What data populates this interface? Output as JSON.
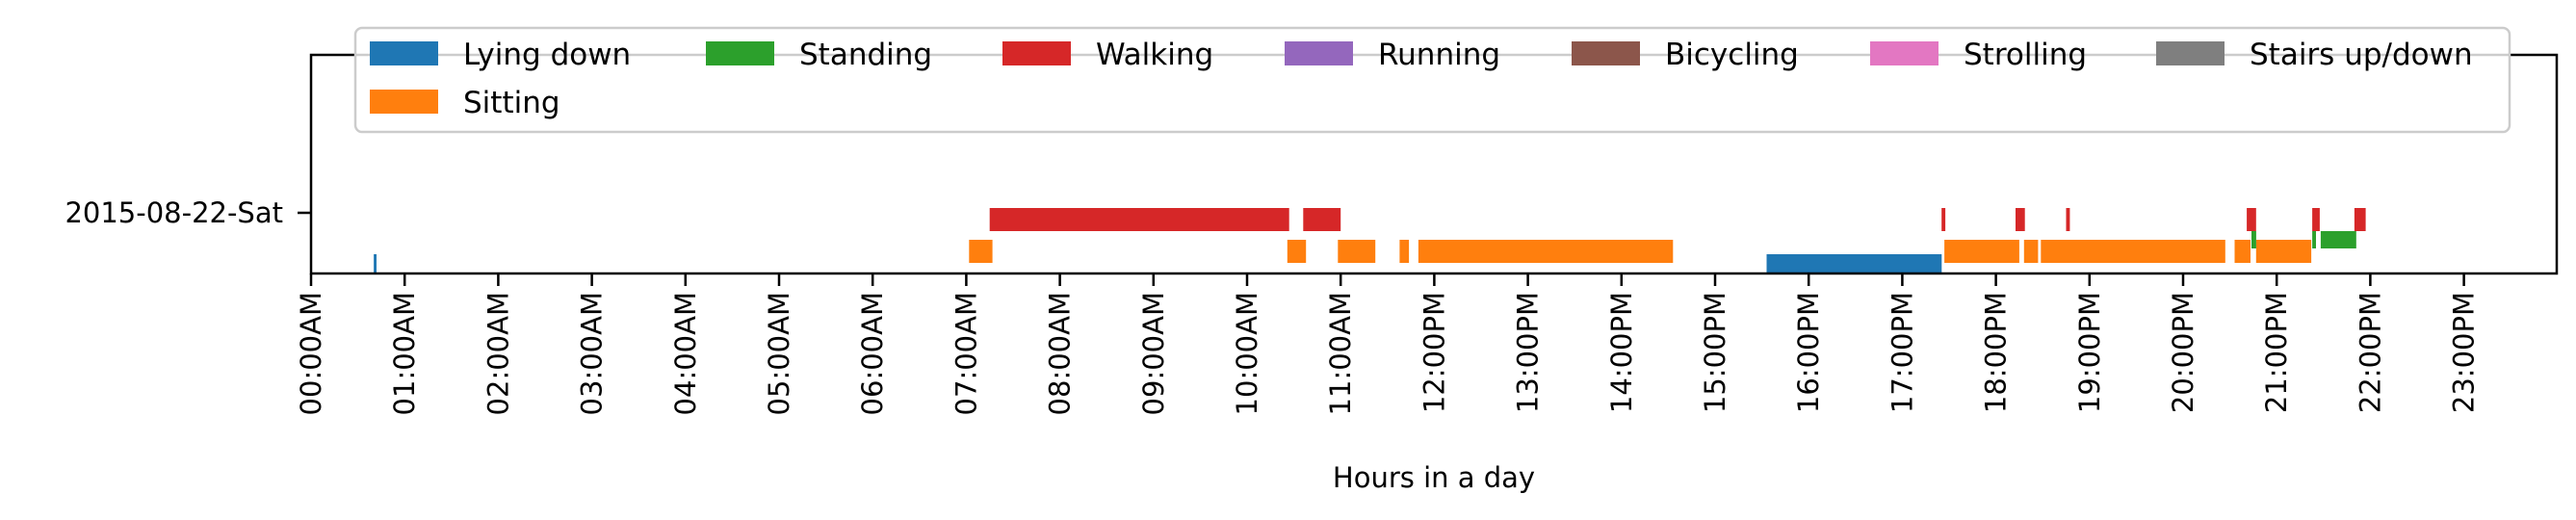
{
  "chart_data": {
    "type": "timeline",
    "xlabel": "Hours in a day",
    "xlim": [
      0,
      24
    ],
    "x_ticks": [
      "00:00AM",
      "01:00AM",
      "02:00AM",
      "03:00AM",
      "04:00AM",
      "05:00AM",
      "06:00AM",
      "07:00AM",
      "08:00AM",
      "09:00AM",
      "10:00AM",
      "11:00AM",
      "12:00PM",
      "13:00PM",
      "14:00PM",
      "15:00PM",
      "16:00PM",
      "17:00PM",
      "18:00PM",
      "19:00PM",
      "20:00PM",
      "21:00PM",
      "22:00PM",
      "23:00PM"
    ],
    "y_categories": [
      "2015-08-22-Sat"
    ],
    "legend": {
      "placement": "top"
    },
    "series": [
      {
        "name": "Lying down",
        "color": "#1f77b4",
        "segments": [
          [
            0.67,
            0.7
          ],
          [
            15.55,
            17.42
          ]
        ]
      },
      {
        "name": "Sitting",
        "color": "#ff7f0e",
        "segments": [
          [
            7.03,
            7.28
          ],
          [
            10.43,
            10.63
          ],
          [
            10.97,
            11.37
          ],
          [
            11.63,
            11.73
          ],
          [
            11.83,
            14.55
          ],
          [
            17.45,
            18.25
          ],
          [
            18.3,
            18.45
          ],
          [
            18.48,
            20.45
          ],
          [
            20.55,
            20.72
          ],
          [
            20.78,
            21.37
          ]
        ]
      },
      {
        "name": "Standing",
        "color": "#2ca02c",
        "segments": [
          [
            20.73,
            20.78
          ],
          [
            21.38,
            21.42
          ],
          [
            21.47,
            21.85
          ]
        ]
      },
      {
        "name": "Walking",
        "color": "#d62728",
        "segments": [
          [
            7.25,
            10.45
          ],
          [
            10.6,
            11.0
          ],
          [
            17.42,
            17.46
          ],
          [
            18.21,
            18.31
          ],
          [
            18.75,
            18.79
          ],
          [
            20.68,
            20.78
          ],
          [
            21.38,
            21.46
          ],
          [
            21.83,
            21.95
          ]
        ]
      },
      {
        "name": "Running",
        "color": "#9467bd",
        "segments": []
      },
      {
        "name": "Bicycling",
        "color": "#8c564b",
        "segments": []
      },
      {
        "name": "Strolling",
        "color": "#e377c2",
        "segments": []
      },
      {
        "name": "Stairs up/down",
        "color": "#7f7f7f",
        "segments": []
      }
    ]
  }
}
